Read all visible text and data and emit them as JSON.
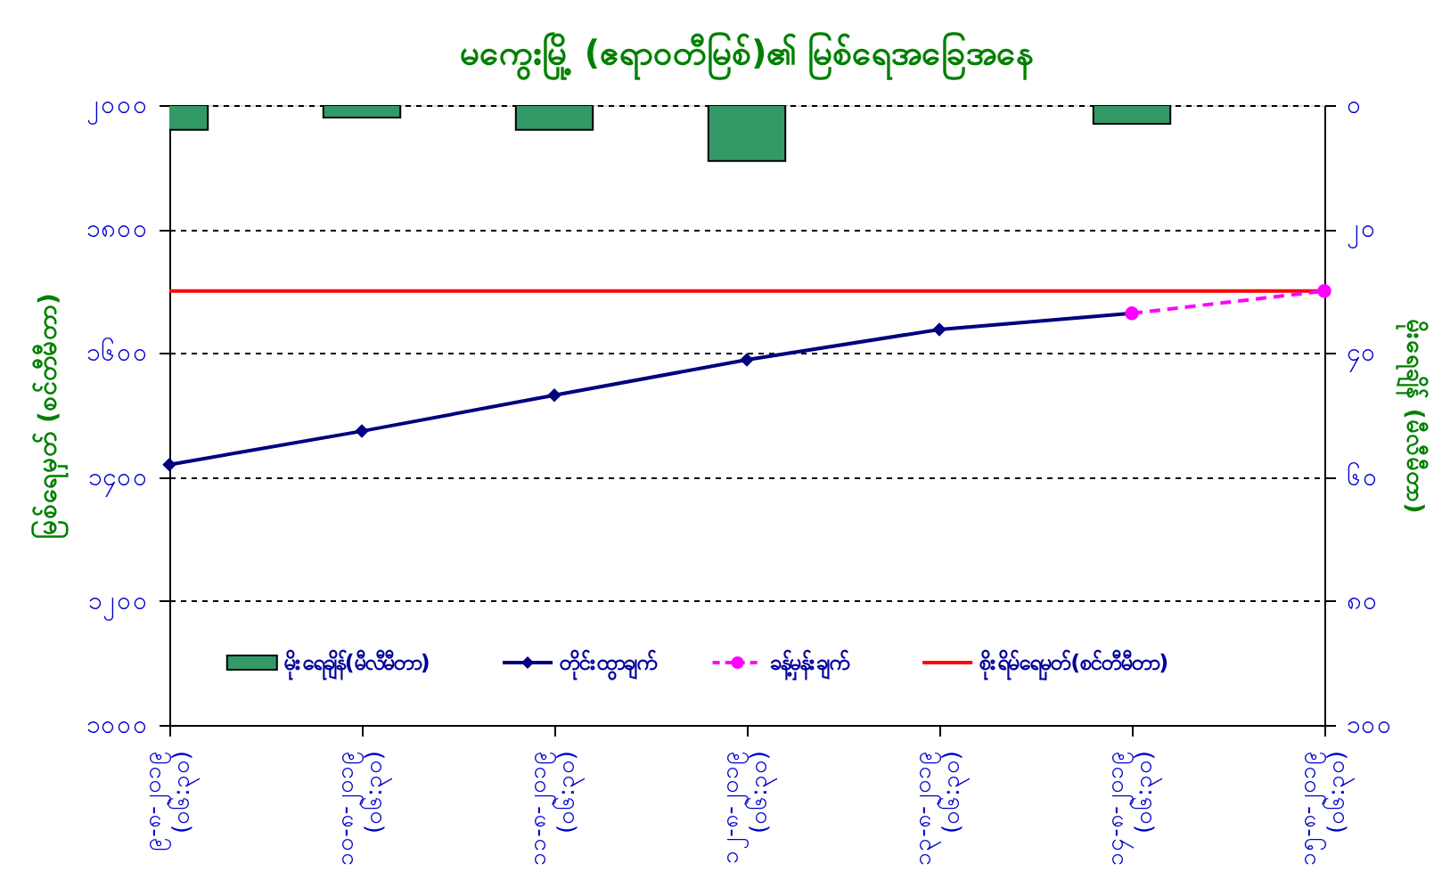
{
  "chart_data": {
    "type": "line",
    "title": "မကွေးမြို့ (ဧရာဝတီမြစ်)၏ မြစ်ရေအခြေအနေ",
    "ylabel": "မြစ်ရေမှတ် (စင်တီမီတာ)",
    "y2label": "မိုးရေချိန် (မီလီမီတာ)",
    "categories": [
      "၉-၈-၂၀၁၉ (၀၆:၃၀)",
      "၁၀-၈-၂၀၁၉ (၀၆:၃၀)",
      "၁၁-၈-၂၀၁၉ (၀၆:၃၀)",
      "၁၂-၈-၂၀၁၉ (၀၆:၃၀)",
      "၁၃-၈-၂၀၁၉ (၀၆:၃၀)",
      "၁၄-၈-၂၀၁၉ (၀၆:၃၀)",
      "၁၅-၈-၂၀၁၉ (၀၆:၃၀)"
    ],
    "series": [
      {
        "name": "မိုးရေချိန်(မီလီမီတာ)",
        "type": "bar",
        "axis": "y2",
        "color": "#339966",
        "values": [
          4,
          2,
          4,
          9,
          null,
          3,
          null
        ]
      },
      {
        "name": "တိုင်းထွာချက်",
        "color": "#000080",
        "marker": "diamond",
        "values": [
          1420,
          1474,
          1532,
          1589,
          1638,
          1664,
          null
        ]
      },
      {
        "name": "ခန့်မှန်းချက်",
        "color": "#ff00ff",
        "marker": "circle",
        "line_style": "dashed",
        "values": [
          null,
          null,
          null,
          null,
          null,
          1664,
          1700
        ]
      },
      {
        "name": "စိုးရိမ်ရေမှတ်(စင်တီမီတာ)",
        "color": "#ff0000",
        "marker": "none",
        "values": [
          1700,
          1700,
          1700,
          1700,
          1700,
          1700,
          1700
        ]
      }
    ],
    "ylim": [
      1000,
      2000
    ],
    "yticks": [
      {
        "value": 1000,
        "label": "၁၀၀၀"
      },
      {
        "value": 1200,
        "label": "၁၂၀၀"
      },
      {
        "value": 1400,
        "label": "၁၄၀၀"
      },
      {
        "value": 1600,
        "label": "၁၆၀၀"
      },
      {
        "value": 1800,
        "label": "၁၈၀၀"
      },
      {
        "value": 2000,
        "label": "၂၀၀၀"
      }
    ],
    "y2lim": [
      100,
      0
    ],
    "y2ticks": [
      {
        "value": 0,
        "label": "၀"
      },
      {
        "value": 20,
        "label": "၂၀"
      },
      {
        "value": 40,
        "label": "၄၀"
      },
      {
        "value": 60,
        "label": "၆၀"
      },
      {
        "value": 80,
        "label": "၈၀"
      },
      {
        "value": 100,
        "label": "၁၀၀"
      }
    ],
    "grid": "y",
    "legend": "bottom"
  }
}
